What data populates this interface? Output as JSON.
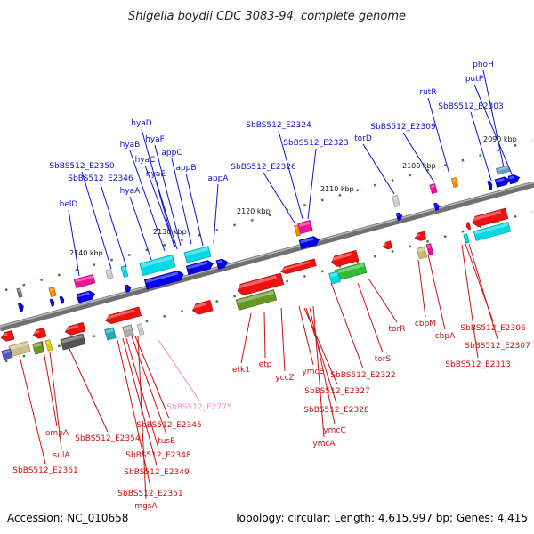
{
  "title": "Shigella boydii CDC 3083-94, complete genome",
  "footer": {
    "accession": "Accession: NC_010658",
    "topology": "Topology: circular; Length: 4,615,997 bp; Genes: 4,415"
  },
  "colors": {
    "upper_label": "#1010cc",
    "lower_label": "#cc1010",
    "pseudo_label": "#ee88cc",
    "backbone": "#808080",
    "tick": "#2a8a2a"
  },
  "scale_ticks": [
    "2090 kbp",
    "2100 kbp",
    "2110 kbp",
    "2120 kbp",
    "2130 kbp",
    "2140 kbp"
  ],
  "upper_genes": [
    "phoH",
    "putP",
    "rutR",
    "SbBS512_E2303",
    "SbBS512_E2309",
    "torD",
    "SbBS512_E2324",
    "SbBS512_E2323",
    "SbBS512_E2326",
    "hyaD",
    "hyaB",
    "hyaF",
    "hyaC",
    "appC",
    "hyaE",
    "appB",
    "appA",
    "hyaA",
    "SbBS512_E2350",
    "SbBS512_E2346",
    "helD"
  ],
  "lower_genes": [
    "etk1",
    "etp",
    "yccZ",
    "ymcB",
    "SbBS512_E2322",
    "torS",
    "torR",
    "cbpM",
    "cbpA",
    "SbBS512_E2306",
    "SbBS512_E2307",
    "SbBS512_E2313",
    "SbBS512_E2327",
    "SbBS512_E2328",
    "ymcC",
    "ymcA",
    "ompA",
    "sulA",
    "SbBS512_E2354",
    "SbBS512_E2361",
    "SbBS512_E2345",
    "tusE",
    "SbBS512_E2348",
    "SbBS512_E2349",
    "SbBS512_E2351",
    "mgsA"
  ],
  "pseudo_genes": [
    "SbBS512_E2775"
  ]
}
